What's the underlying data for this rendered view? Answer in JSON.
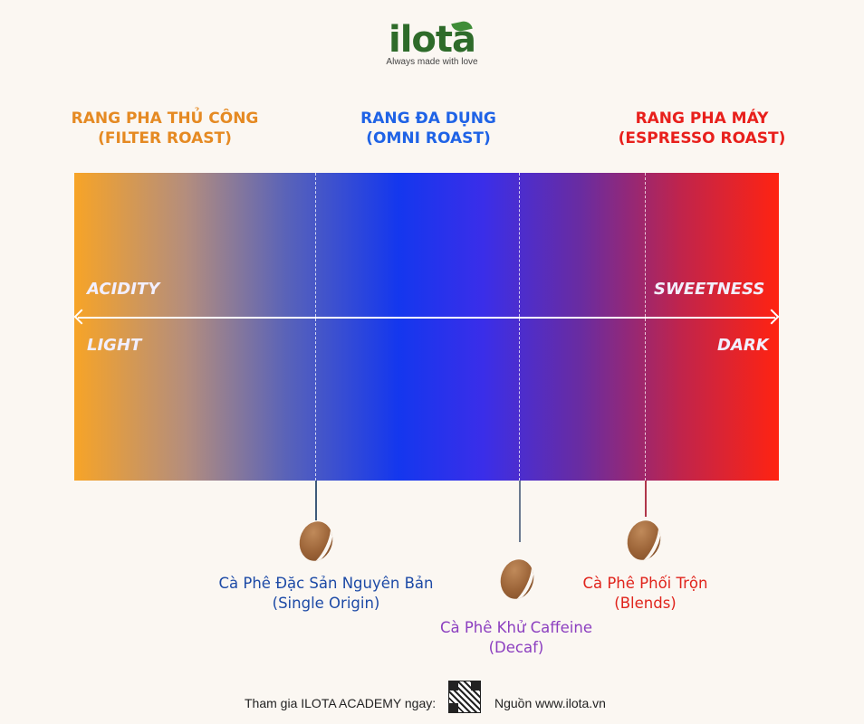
{
  "brand": {
    "name": "ilota",
    "tagline": "Always made with love"
  },
  "headings": {
    "filter": [
      "RANG PHA THỦ CÔNG",
      "(FILTER ROAST)"
    ],
    "omni": [
      "RANG ĐA DỤNG",
      "(OMNI ROAST)"
    ],
    "espresso": [
      "RANG PHA MÁY",
      "(ESPRESSO ROAST)"
    ]
  },
  "scale": {
    "top_left": "ACIDITY",
    "top_right": "SWEETNESS",
    "bottom_left": "LIGHT",
    "bottom_right": "DARK"
  },
  "coffees": {
    "single_origin": [
      "Cà Phê Đặc Sản Nguyên Bản",
      "(Single Origin)"
    ],
    "decaf": [
      "Cà Phê Khử Caffeine",
      "(Decaf)"
    ],
    "blends": [
      "Cà Phê Phối Trộn",
      "(Blends)"
    ]
  },
  "footer": {
    "join": "Tham gia ILOTA ACADEMY ngay:",
    "source": "Nguồn www.ilota.vn"
  },
  "icons": {
    "bean": "coffee-bean-icon",
    "qr": "qr-code-icon",
    "arrow": "double-arrow-icon"
  },
  "colors": {
    "filter": "#e58a23",
    "omni": "#1f63e6",
    "espresso": "#e8201c",
    "single_origin": "#1d4aa6",
    "decaf": "#8c3fc0",
    "blends": "#e0241c",
    "bean": "#9a6236",
    "logo": "#2e6b2a"
  }
}
